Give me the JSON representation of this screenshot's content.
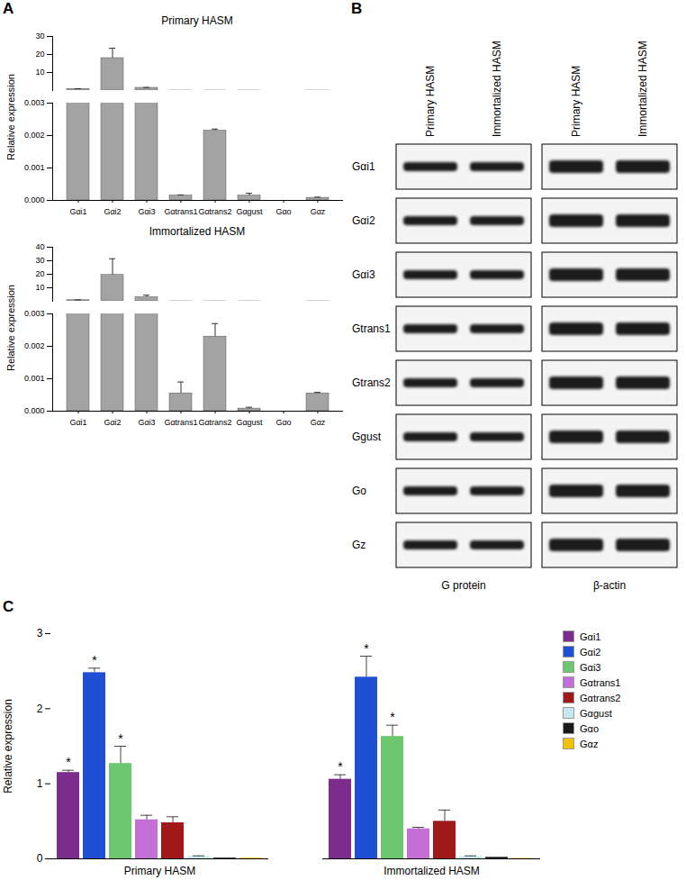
{
  "panel_labels": [
    "A",
    "B",
    "C"
  ],
  "chart_data": [
    {
      "type": "bar",
      "title": "Primary HASM",
      "y_label": "Relative expression",
      "categories": [
        "Gαi1",
        "Gαi2",
        "Gαi3",
        "Gαtrans1",
        "Gαtrans2",
        "Gαgust",
        "Gαo",
        "Gαz"
      ],
      "values": [
        0.9,
        18,
        1.5,
        0.00015,
        0.00215,
        0.00015,
        0,
        8e-05
      ],
      "errors": [
        0.1,
        5.5,
        0.2,
        2e-05,
        5e-05,
        7e-05,
        0,
        2e-05
      ],
      "color": "#a3a3a3",
      "y_segments": [
        {
          "ylim": [
            0,
            0.003
          ],
          "yticks": [
            {
              "value": 0,
              "label": "0.000"
            },
            {
              "value": 0.001,
              "label": "0.001"
            },
            {
              "value": 0.002,
              "label": "0.002"
            },
            {
              "value": 0.003,
              "label": "0.003"
            }
          ]
        },
        {
          "ylim": [
            0,
            30
          ],
          "yticks": [
            10,
            20,
            30
          ]
        }
      ]
    },
    {
      "type": "bar",
      "title": "Immortalized HASM",
      "y_label": "Relative expression",
      "categories": [
        "Gαi1",
        "Gαi2",
        "Gαi3",
        "Gαtrans1",
        "Gαtrans2",
        "Gαgust",
        "Gαo",
        "Gαz"
      ],
      "values": [
        0.8,
        19.5,
        3,
        0.00055,
        0.0023,
        8e-05,
        0,
        0.00055
      ],
      "errors": [
        0.3,
        12,
        1.5,
        0.00035,
        0.0004,
        4e-05,
        0,
        3e-05
      ],
      "color": "#a3a3a3",
      "y_segments": [
        {
          "ylim": [
            0,
            0.003
          ],
          "yticks": [
            {
              "value": 0,
              "label": "0.000"
            },
            {
              "value": 0.001,
              "label": "0.001"
            },
            {
              "value": 0.002,
              "label": "0.002"
            },
            {
              "value": 0.003,
              "label": "0.003"
            }
          ]
        },
        {
          "ylim": [
            0,
            40
          ],
          "yticks": [
            10,
            20,
            30,
            40
          ]
        }
      ]
    },
    {
      "type": "bar",
      "y_label": "Relative expression",
      "categories": [
        "Primary HASM",
        "Immortalized HASM"
      ],
      "series": [
        {
          "name": "Gαi1",
          "color": "#7b2c8c",
          "values": [
            1.15,
            1.06
          ],
          "errors": [
            0.03,
            0.06
          ]
        },
        {
          "name": "Gαi2",
          "color": "#1f4fd6",
          "values": [
            2.48,
            2.42
          ],
          "errors": [
            0.06,
            0.28
          ]
        },
        {
          "name": "Gαi3",
          "color": "#6cc870",
          "values": [
            1.27,
            1.63
          ],
          "errors": [
            0.23,
            0.15
          ]
        },
        {
          "name": "Gαtrans1",
          "color": "#c46fd6",
          "values": [
            0.52,
            0.4
          ],
          "errors": [
            0.06,
            0.02
          ]
        },
        {
          "name": "Gαtrans2",
          "color": "#a01818",
          "values": [
            0.48,
            0.5
          ],
          "errors": [
            0.08,
            0.15
          ]
        },
        {
          "name": "Gαgust",
          "color": "#c8e8f0",
          "values": [
            0.03,
            0.03
          ],
          "errors": [
            0.01,
            0.01
          ]
        },
        {
          "name": "Gαo",
          "color": "#1a1a1a",
          "values": [
            0.01,
            0.02
          ],
          "errors": [
            0,
            0
          ]
        },
        {
          "name": "Gαz",
          "color": "#f2c200",
          "values": [
            0.01,
            0.005
          ],
          "errors": [
            0,
            0
          ]
        }
      ],
      "annotations": [
        {
          "category": "Primary HASM",
          "series": "Gαi1",
          "text": "*"
        },
        {
          "category": "Primary HASM",
          "series": "Gαi2",
          "text": "*"
        },
        {
          "category": "Primary HASM",
          "series": "Gαi3",
          "text": "*"
        },
        {
          "category": "Immortalized HASM",
          "series": "Gαi1",
          "text": "*"
        },
        {
          "category": "Immortalized HASM",
          "series": "Gαi2",
          "text": "*"
        },
        {
          "category": "Immortalized HASM",
          "series": "Gαi3",
          "text": "*"
        }
      ],
      "ylim": [
        0,
        3
      ],
      "yticks": [
        0,
        1,
        2,
        3
      ],
      "legend": "right"
    }
  ],
  "blot": {
    "columns": [
      "Primary HASM",
      "Immortalized HASM"
    ],
    "rows": [
      "Gαi1",
      "Gαi2",
      "Gαi3",
      "Gtrans1",
      "Gtrans2",
      "Ggust",
      "Go",
      "Gz"
    ],
    "panels": [
      "G protein",
      "β-actin"
    ]
  }
}
